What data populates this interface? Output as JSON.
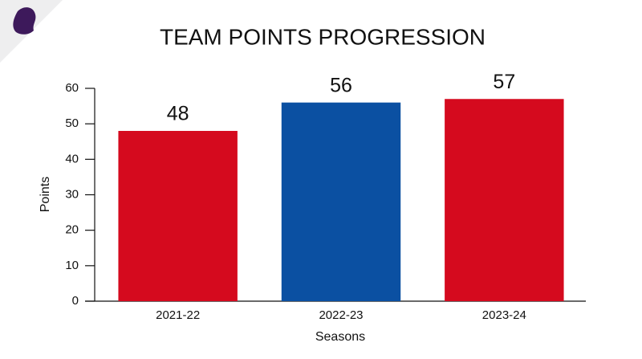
{
  "chart_data": {
    "type": "bar",
    "title": "TEAM POINTS PROGRESSION",
    "x_label": "Seasons",
    "y_label": "Points",
    "categories": [
      "2021-22",
      "2022-23",
      "2023-24"
    ],
    "values": [
      48,
      56,
      57
    ],
    "colors": [
      "#d50a1e",
      "#0b50a2",
      "#d50a1e"
    ],
    "ylim": [
      0,
      60
    ],
    "yticks": [
      0,
      10,
      20,
      30,
      40,
      50,
      60
    ],
    "grid": false
  }
}
